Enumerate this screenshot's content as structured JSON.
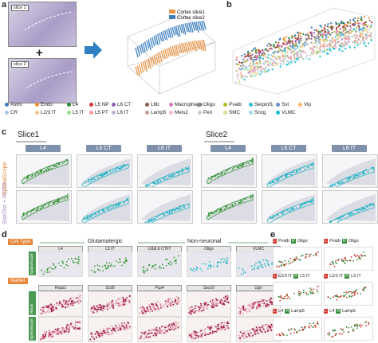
{
  "panel_labels": {
    "a": "a",
    "b": "b",
    "c": "c",
    "d": "d",
    "e": "e"
  },
  "panel_a": {
    "slice1": "slice 1",
    "plus": "+",
    "slice2": "slice 2",
    "legend1": "Cortex slice1",
    "legend2": "Cortex slice2",
    "color1": "#e8944a",
    "color2": "#3d7fbf"
  },
  "cell_legend": [
    {
      "name": "Astro",
      "color": "#3b79b8"
    },
    {
      "name": "Endo",
      "color": "#f1902c"
    },
    {
      "name": "L4",
      "color": "#2f8a36"
    },
    {
      "name": "L5 NP",
      "color": "#d0342c"
    },
    {
      "name": "L6 CT",
      "color": "#8b62b8"
    },
    {
      "name": "L6b",
      "color": "#8c5a4a"
    },
    {
      "name": "Macrophage",
      "color": "#d479bc"
    },
    {
      "name": "Oligo",
      "color": "#7f7f7f"
    },
    {
      "name": "Pvalb",
      "color": "#b5b82a"
    },
    {
      "name": "Serpinf1",
      "color": "#2dbcd0"
    },
    {
      "name": "Sst",
      "color": "#6c8fc9"
    },
    {
      "name": "Vip",
      "color": "#f7b56a"
    },
    {
      "name": "CR",
      "color": "#a6c8e8"
    },
    {
      "name": "L2/3 IT",
      "color": "#f9c288"
    },
    {
      "name": "L5 IT",
      "color": "#98df8a"
    },
    {
      "name": "L5 PT",
      "color": "#ff9896"
    },
    {
      "name": "L6 IT",
      "color": "#c5b0d5"
    },
    {
      "name": "Lamp5",
      "color": "#c49c94"
    },
    {
      "name": "Meis2",
      "color": "#f7b6d2"
    },
    {
      "name": "Peri",
      "color": "#c7c7c7"
    },
    {
      "name": "SMC",
      "color": "#dbdb8d"
    },
    {
      "name": "Sncg",
      "color": "#9edae5"
    },
    {
      "name": "VLMC",
      "color": "#17becf"
    }
  ],
  "panel_c": {
    "slice1": "Slice1",
    "slice2": "Slice2",
    "row1": "SpatialScope",
    "row2": "StarDist + RCTD",
    "cols": [
      "L4",
      "L6 CT",
      "L6 IT",
      "L4",
      "L6 CT",
      "L6 IT"
    ]
  },
  "panel_d": {
    "cell_type": "Cell Type",
    "glutamatergic": "Glutamatergic",
    "nonneuronal": "Non-neuronal",
    "types": [
      "L4",
      "L5 IT",
      "L6b/L6 CT/IT",
      "Oligo",
      "VLMC"
    ],
    "marker": "Marker",
    "genes": [
      "Rspo1",
      "Scd5",
      "Pcp4",
      "Sox10",
      "Ogn"
    ],
    "rows": [
      "SpatialScope",
      "Visium",
      "SpatialScope"
    ]
  },
  "panel_e": {
    "pairs": [
      {
        "l": "Pvalb",
        "r": "Oligo",
        "lcolor": "#d0342c",
        "rcolor": "#2f8a36"
      },
      {
        "l": "L2/3 IT",
        "r": "L5 IT",
        "lcolor": "#d0342c",
        "rcolor": "#2f8a36"
      },
      {
        "l": "L4",
        "r": "Lamp5",
        "lcolor": "#d0342c",
        "rcolor": "#2f8a36"
      }
    ]
  }
}
